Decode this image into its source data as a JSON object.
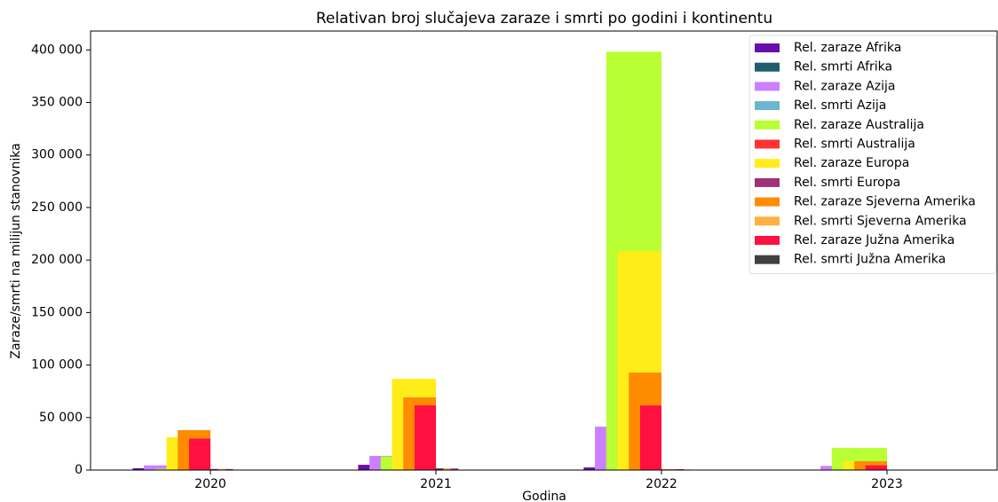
{
  "chart_data": {
    "type": "bar",
    "title": "Relativan broj slučajeva zaraze i smrti po godini i kontinentu",
    "xlabel": "Godina",
    "ylabel": "Zaraze/smrti na milijun stanovnika",
    "categories": [
      "2020",
      "2021",
      "2022",
      "2023"
    ],
    "ylim": [
      0,
      418000
    ],
    "yticks": [
      0,
      {
        "value": 50000,
        "label": "50 000"
      },
      {
        "value": 100000,
        "label": "100 000"
      },
      {
        "value": 150000,
        "label": "150 000"
      },
      {
        "value": 200000,
        "label": "200 000"
      },
      {
        "value": 250000,
        "label": "250 000"
      },
      {
        "value": 300000,
        "label": "300 000"
      },
      {
        "value": 350000,
        "label": "350 000"
      },
      {
        "value": 400000,
        "label": "400 000"
      }
    ],
    "grid": false,
    "legend": "upper right",
    "series": [
      {
        "name": "Rel. zaraze Afrika",
        "color": "#6a0dad",
        "values": [
          1700,
          5000,
          2500,
          200
        ]
      },
      {
        "name": "Rel. smrti Afrika",
        "color": "#1f5f6b",
        "values": [
          50,
          100,
          30,
          10
        ]
      },
      {
        "name": "Rel. zaraze Azija",
        "color": "#cc80ff",
        "values": [
          4500,
          13500,
          41300,
          4000
        ]
      },
      {
        "name": "Rel. smrti Azija",
        "color": "#6bb5d0",
        "values": [
          60,
          150,
          60,
          15
        ]
      },
      {
        "name": "Rel. zaraze Australija",
        "color": "#b8ff33",
        "values": [
          1200,
          13000,
          398300,
          21100
        ]
      },
      {
        "name": "Rel. smrti Australija",
        "color": "#ff3333",
        "values": [
          40,
          50,
          500,
          30
        ]
      },
      {
        "name": "Rel. zaraze Europa",
        "color": "#ffed1a",
        "values": [
          31200,
          86900,
          208400,
          8500
        ]
      },
      {
        "name": "Rel. smrti Europa",
        "color": "#a0307a",
        "values": [
          1000,
          1500,
          900,
          70
        ]
      },
      {
        "name": "Rel. zaraze Sjeverna Amerika",
        "color": "#ff8c00",
        "values": [
          38000,
          69200,
          92800,
          8400
        ]
      },
      {
        "name": "Rel. smrti Sjeverna Amerika",
        "color": "#ffb040",
        "values": [
          1000,
          1400,
          700,
          70
        ]
      },
      {
        "name": "Rel. zaraze Južna Amerika",
        "color": "#ff1040",
        "values": [
          30000,
          61600,
          61500,
          4500
        ]
      },
      {
        "name": "Rel. smrti Južna Amerika",
        "color": "#404040",
        "values": [
          900,
          1500,
          300,
          20
        ]
      }
    ]
  }
}
